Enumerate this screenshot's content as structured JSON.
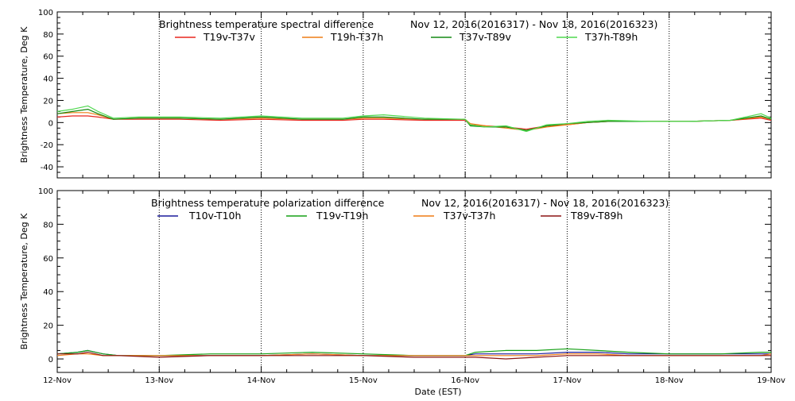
{
  "chart_data": [
    {
      "type": "line",
      "title": "Brightness temperature spectral difference",
      "date_range": "Nov 12, 2016(2016317) - Nov 18, 2016(2016323)",
      "ylabel": "Brightness Temperature, Deg K",
      "xlabel": "",
      "xlim": [
        0,
        7
      ],
      "ylim": [
        -50,
        100
      ],
      "yticks": [
        -40,
        -20,
        0,
        20,
        40,
        60,
        80,
        100
      ],
      "xticks": [
        0,
        1,
        2,
        3,
        4,
        5,
        6,
        7
      ],
      "xtick_labels": [
        "12-Nov",
        "13-Nov",
        "14-Nov",
        "15-Nov",
        "16-Nov",
        "17-Nov",
        "18-Nov",
        "19-Nov"
      ],
      "show_xtick_labels": false,
      "grid": "dotted vertical at day boundaries",
      "legend": "top",
      "series": [
        {
          "name": "T19v-T37v",
          "color": "#e8261e",
          "x": [
            0,
            0.15,
            0.3,
            0.4,
            0.55,
            0.8,
            1.2,
            1.6,
            2.0,
            2.4,
            2.8,
            3.0,
            3.2,
            3.6,
            4.0,
            4.05,
            4.2,
            4.4,
            4.6,
            4.8,
            5.0,
            5.2,
            5.4,
            5.8,
            6.2,
            6.6,
            6.9,
            7.0
          ],
          "y": [
            5,
            6,
            6,
            5,
            3,
            3,
            3,
            2,
            3,
            2,
            2,
            3,
            3,
            2,
            2,
            -2,
            -3,
            -4,
            -6,
            -3,
            -2,
            0,
            1,
            1,
            1,
            2,
            4,
            2
          ]
        },
        {
          "name": "T19h-T37h",
          "color": "#ee7d15",
          "x": [
            0,
            0.15,
            0.3,
            0.4,
            0.55,
            0.8,
            1.2,
            1.6,
            2.0,
            2.4,
            2.8,
            3.0,
            3.2,
            3.6,
            4.0,
            4.05,
            4.2,
            4.4,
            4.6,
            4.8,
            5.0,
            5.2,
            5.4,
            5.8,
            6.2,
            6.6,
            6.9,
            7.0
          ],
          "y": [
            8,
            9,
            9,
            7,
            3,
            4,
            4,
            3,
            4,
            3,
            3,
            4,
            4,
            3,
            3,
            -1,
            -3,
            -5,
            -7,
            -4,
            -2,
            0,
            1,
            1,
            1,
            2,
            5,
            3
          ]
        },
        {
          "name": "T37v-T89v",
          "color": "#138a13",
          "x": [
            0,
            0.15,
            0.3,
            0.4,
            0.55,
            0.8,
            1.2,
            1.6,
            2.0,
            2.4,
            2.8,
            3.0,
            3.2,
            3.6,
            4.0,
            4.05,
            4.2,
            4.4,
            4.6,
            4.8,
            5.0,
            5.2,
            5.4,
            5.8,
            6.2,
            6.6,
            6.9,
            7.0
          ],
          "y": [
            8,
            10,
            12,
            8,
            3,
            4,
            4,
            3,
            5,
            3,
            3,
            5,
            5,
            3,
            3,
            -3,
            -4,
            -4,
            -7,
            -3,
            -1,
            0,
            1,
            1,
            1,
            2,
            6,
            3
          ]
        },
        {
          "name": "T37h-T89h",
          "color": "#4fd84f",
          "x": [
            0,
            0.15,
            0.3,
            0.4,
            0.55,
            0.8,
            1.2,
            1.6,
            2.0,
            2.4,
            2.8,
            3.0,
            3.2,
            3.6,
            4.0,
            4.05,
            4.2,
            4.4,
            4.6,
            4.8,
            5.0,
            5.2,
            5.4,
            5.8,
            6.2,
            6.6,
            6.9,
            7.0
          ],
          "y": [
            10,
            12,
            15,
            10,
            4,
            5,
            5,
            4,
            6,
            4,
            4,
            6,
            7,
            4,
            3,
            -2,
            -4,
            -3,
            -8,
            -2,
            -1,
            1,
            2,
            1,
            1,
            2,
            8,
            4
          ]
        }
      ]
    },
    {
      "type": "line",
      "title": "Brightness temperature polarization difference",
      "date_range": "Nov 12, 2016(2016317) - Nov 18, 2016(2016323)",
      "ylabel": "Brightness Temperature, Deg K",
      "xlabel": "Date (EST)",
      "xlim": [
        0,
        7
      ],
      "ylim": [
        -8,
        100
      ],
      "yticks": [
        0,
        20,
        40,
        60,
        80,
        100
      ],
      "xticks": [
        0,
        1,
        2,
        3,
        4,
        5,
        6,
        7
      ],
      "xtick_labels": [
        "12-Nov",
        "13-Nov",
        "14-Nov",
        "15-Nov",
        "16-Nov",
        "17-Nov",
        "18-Nov",
        "19-Nov"
      ],
      "show_xtick_labels": true,
      "grid": "dotted vertical at day boundaries",
      "legend": "top",
      "series": [
        {
          "name": "T10v-T10h",
          "color": "#1a1a9c",
          "x": [
            0,
            0.2,
            0.3,
            0.45,
            0.6,
            1.0,
            1.5,
            2.0,
            2.5,
            3.0,
            3.5,
            4.0,
            4.1,
            4.4,
            4.7,
            5.0,
            5.3,
            5.6,
            6.0,
            6.5,
            6.9,
            7.0
          ],
          "y": [
            3,
            4,
            5,
            3,
            2,
            2,
            2,
            2,
            3,
            2,
            2,
            2,
            3,
            3,
            3,
            4,
            4,
            3,
            3,
            3,
            3,
            3
          ]
        },
        {
          "name": "T19v-T19h",
          "color": "#15a015",
          "x": [
            0,
            0.2,
            0.3,
            0.45,
            0.6,
            1.0,
            1.5,
            2.0,
            2.5,
            3.0,
            3.5,
            4.0,
            4.1,
            4.4,
            4.7,
            5.0,
            5.3,
            5.6,
            6.0,
            6.5,
            6.9,
            7.0
          ],
          "y": [
            3,
            4,
            5,
            3,
            2,
            2,
            3,
            3,
            4,
            3,
            2,
            2,
            4,
            5,
            5,
            6,
            5,
            4,
            3,
            3,
            4,
            4
          ]
        },
        {
          "name": "T37v-T37h",
          "color": "#ef7b14",
          "x": [
            0,
            0.2,
            0.3,
            0.45,
            0.6,
            1.0,
            1.5,
            2.0,
            2.5,
            3.0,
            3.5,
            4.0,
            4.1,
            4.4,
            4.7,
            5.0,
            5.3,
            5.6,
            6.0,
            6.5,
            6.9,
            7.0
          ],
          "y": [
            2,
            3,
            3,
            2,
            2,
            2,
            2,
            2,
            3,
            2,
            2,
            2,
            2,
            2,
            2,
            3,
            3,
            2,
            2,
            2,
            2,
            3
          ]
        },
        {
          "name": "T89v-T89h",
          "color": "#8b1414",
          "x": [
            0,
            0.2,
            0.3,
            0.45,
            0.6,
            1.0,
            1.5,
            2.0,
            2.5,
            3.0,
            3.5,
            4.0,
            4.1,
            4.4,
            4.7,
            5.0,
            5.3,
            5.6,
            6.0,
            6.5,
            6.9,
            7.0
          ],
          "y": [
            3,
            3,
            4,
            2,
            2,
            1,
            2,
            2,
            2,
            2,
            1,
            1,
            1,
            0,
            1,
            2,
            2,
            2,
            2,
            2,
            2,
            2
          ]
        }
      ]
    }
  ]
}
